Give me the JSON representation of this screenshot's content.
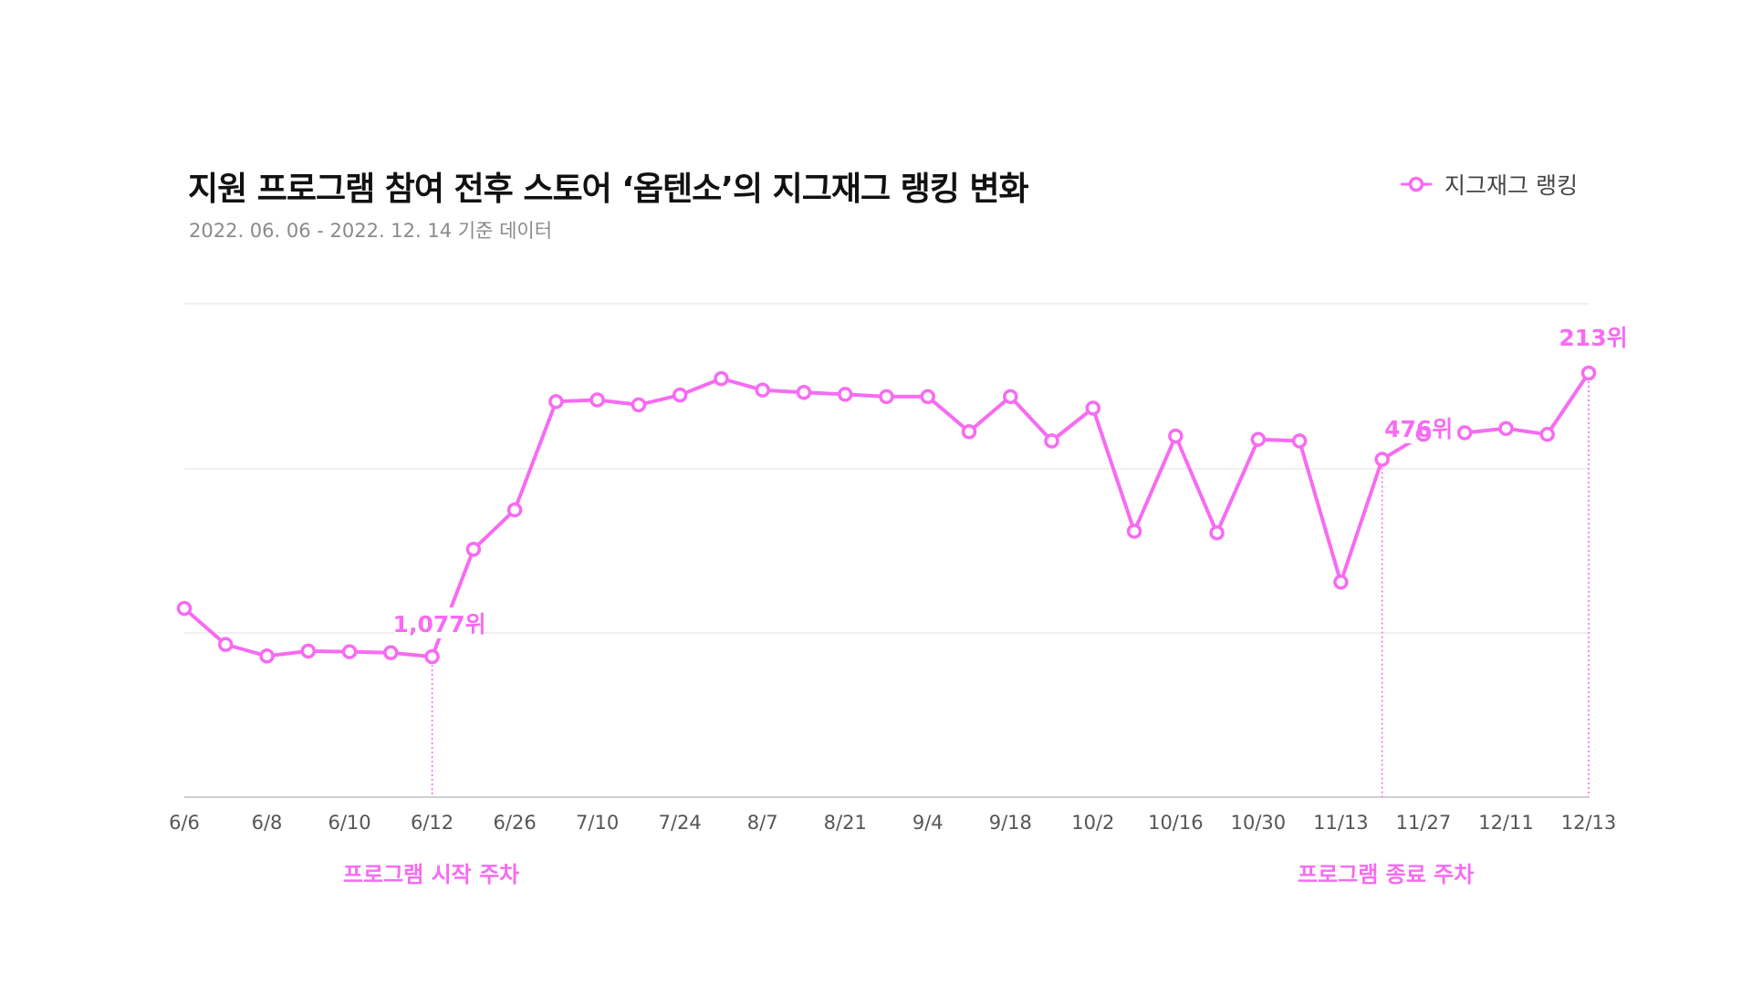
{
  "title": "지원 프로그램 참여 전후 스토어 ‘옵텐소’의 지그재그 랭킹 변화",
  "subtitle": "2022. 06. 06 - 2022. 12. 14 기준 데이터",
  "legend_label": "지그재그 랭킹",
  "colors": {
    "series": "#f76bf2",
    "grid": "#e6e6e6",
    "axis": "#cfcfcf",
    "tick": "#555555"
  },
  "chart_data": {
    "type": "line",
    "title": "지원 프로그램 참여 전후 스토어 ‘옵텐소’의 지그재그 랭킹 변화",
    "subtitle": "2022. 06. 06 - 2022. 12. 14 기준 데이터",
    "y_inverted": true,
    "grid": true,
    "legend_position": "top-right",
    "tick_labels": [
      "6/6",
      "6/8",
      "6/10",
      "6/12",
      "6/26",
      "7/10",
      "7/24",
      "8/7",
      "8/21",
      "9/4",
      "9/18",
      "10/2",
      "10/16",
      "10/30",
      "11/13",
      "11/27",
      "12/11",
      "12/13"
    ],
    "series": [
      {
        "name": "지그재그 랭킹",
        "values": [
          930,
          1040,
          1075,
          1060,
          1062,
          1065,
          1077,
          750,
          630,
          300,
          295,
          310,
          280,
          230,
          265,
          272,
          278,
          285,
          285,
          392,
          285,
          420,
          320,
          695,
          405,
          700,
          415,
          420,
          850,
          476,
          400,
          395,
          382,
          400,
          213
        ]
      }
    ],
    "annotations": [
      {
        "label": "1,077위"
      },
      {
        "label": "476위"
      },
      {
        "label": "213위"
      },
      {
        "label": "프로그램 시작 주차"
      },
      {
        "label": "프로그램 종료 주차"
      }
    ]
  }
}
